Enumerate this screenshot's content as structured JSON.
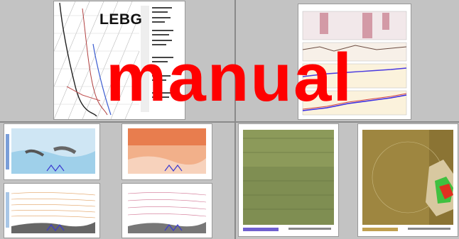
{
  "overlay_text": "manual",
  "sounding": {
    "station_code": "LEBG"
  },
  "colors": {
    "overlay": "#ff0000",
    "background": "#c6c6c6",
    "divider": "#8a8a8a"
  }
}
